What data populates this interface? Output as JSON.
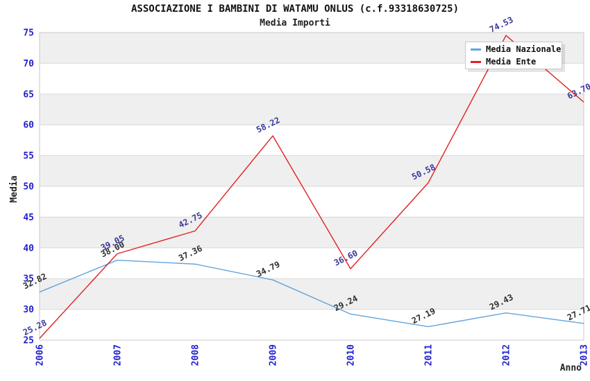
{
  "header": {
    "title": "ASSOCIAZIONE I BAMBINI DI WATAMU ONLUS (c.f.93318630725)",
    "subtitle": "Media Importi"
  },
  "colors": {
    "tick_label_blue": "#2222cc",
    "band_gray": "#efefef",
    "gridline": "#d9d9d9",
    "plot_border": "#c9c9c9",
    "title_text": "#111111",
    "axis_title_text": "#222222"
  },
  "chart_data": {
    "type": "line",
    "title": "ASSOCIAZIONE I BAMBINI DI WATAMU ONLUS (c.f.93318630725)",
    "subtitle": "Media Importi",
    "xlabel": "Anno",
    "ylabel": "Media",
    "ylim": [
      25,
      75
    ],
    "ytick_step": 5,
    "grid": "horizontal-bands-alternating",
    "legend_position": "top-right",
    "categories": [
      "2006",
      "2007",
      "2008",
      "2009",
      "2010",
      "2011",
      "2012",
      "2013"
    ],
    "series": [
      {
        "name": "Media Nazionale",
        "color": "#62a3dc",
        "label_color": "#2f2f2f",
        "values": [
          32.82,
          38.0,
          37.36,
          34.79,
          29.24,
          27.19,
          29.43,
          27.71
        ]
      },
      {
        "name": "Media Ente",
        "color": "#e02020",
        "label_color": "#39399b",
        "values": [
          25.28,
          39.05,
          42.75,
          58.22,
          36.6,
          50.58,
          74.53,
          63.7
        ]
      }
    ]
  }
}
